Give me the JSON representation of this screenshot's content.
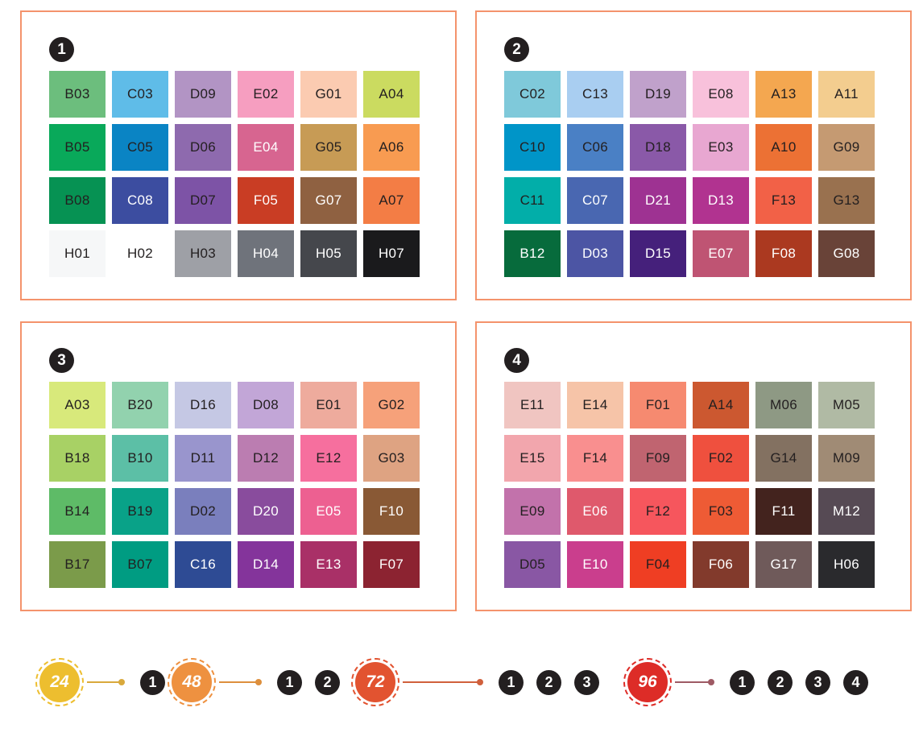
{
  "styles": {
    "panel_border_color": "#F4936C",
    "panel_badge_bg": "#231F20",
    "panel_badge_fg": "#FFFFFF",
    "background": "#FFFFFF"
  },
  "chart_data": {
    "type": "table",
    "title": "Marker color swatch chart grouped into four numbered panels with set-size legend",
    "grid_per_panel": {
      "columns": 6,
      "rows": 4
    },
    "panels": [
      {
        "badge": "1",
        "swatches": [
          {
            "code": "B03",
            "color": "#6CBE7D",
            "label_color": "#231F20"
          },
          {
            "code": "C03",
            "color": "#5FBCE8",
            "label_color": "#231F20"
          },
          {
            "code": "D09",
            "color": "#B294C4",
            "label_color": "#231F20"
          },
          {
            "code": "E02",
            "color": "#F69EC0",
            "label_color": "#231F20"
          },
          {
            "code": "G01",
            "color": "#FBCBB1",
            "label_color": "#231F20"
          },
          {
            "code": "A04",
            "color": "#CBDB60",
            "label_color": "#231F20"
          },
          {
            "code": "B05",
            "color": "#09A95A",
            "label_color": "#231F20"
          },
          {
            "code": "C05",
            "color": "#0A84C4",
            "label_color": "#231F20"
          },
          {
            "code": "D06",
            "color": "#8E6AAE",
            "label_color": "#231F20"
          },
          {
            "code": "E04",
            "color": "#D76590",
            "label_color": "#FFFFFF"
          },
          {
            "code": "G05",
            "color": "#C79B55",
            "label_color": "#231F20"
          },
          {
            "code": "A06",
            "color": "#F89B51",
            "label_color": "#231F20"
          },
          {
            "code": "B08",
            "color": "#069253",
            "label_color": "#231F20"
          },
          {
            "code": "C08",
            "color": "#3C4DA0",
            "label_color": "#FFFFFF"
          },
          {
            "code": "D07",
            "color": "#7D53A6",
            "label_color": "#231F20"
          },
          {
            "code": "F05",
            "color": "#C93D24",
            "label_color": "#FFFFFF"
          },
          {
            "code": "G07",
            "color": "#8F6141",
            "label_color": "#FFFFFF"
          },
          {
            "code": "A07",
            "color": "#F37D45",
            "label_color": "#231F20"
          },
          {
            "code": "H01",
            "color": "#F6F7F8",
            "label_color": "#231F20"
          },
          {
            "code": "H02",
            "color": "#FFFFFF",
            "label_color": "#231F20"
          },
          {
            "code": "H03",
            "color": "#9EA0A6",
            "label_color": "#231F20"
          },
          {
            "code": "H04",
            "color": "#6F737B",
            "label_color": "#FFFFFF"
          },
          {
            "code": "H05",
            "color": "#45474C",
            "label_color": "#FFFFFF"
          },
          {
            "code": "H07",
            "color": "#1A1A1C",
            "label_color": "#FFFFFF"
          }
        ]
      },
      {
        "badge": "2",
        "swatches": [
          {
            "code": "C02",
            "color": "#7FC9DA",
            "label_color": "#231F20"
          },
          {
            "code": "C13",
            "color": "#A9CEF1",
            "label_color": "#231F20"
          },
          {
            "code": "D19",
            "color": "#C0A1CB",
            "label_color": "#231F20"
          },
          {
            "code": "E08",
            "color": "#F8C1DB",
            "label_color": "#231F20"
          },
          {
            "code": "A13",
            "color": "#F4A750",
            "label_color": "#231F20"
          },
          {
            "code": "A11",
            "color": "#F3CD8F",
            "label_color": "#231F20"
          },
          {
            "code": "C10",
            "color": "#0095C8",
            "label_color": "#231F20"
          },
          {
            "code": "C06",
            "color": "#4A80C5",
            "label_color": "#231F20"
          },
          {
            "code": "D18",
            "color": "#8A59A8",
            "label_color": "#231F20"
          },
          {
            "code": "E03",
            "color": "#E8A7D1",
            "label_color": "#231F20"
          },
          {
            "code": "A10",
            "color": "#EC7134",
            "label_color": "#231F20"
          },
          {
            "code": "G09",
            "color": "#C59A72",
            "label_color": "#231F20"
          },
          {
            "code": "C11",
            "color": "#02AEA9",
            "label_color": "#231F20"
          },
          {
            "code": "C07",
            "color": "#4967B1",
            "label_color": "#FFFFFF"
          },
          {
            "code": "D21",
            "color": "#9E3292",
            "label_color": "#FFFFFF"
          },
          {
            "code": "D13",
            "color": "#B13390",
            "label_color": "#FFFFFF"
          },
          {
            "code": "F13",
            "color": "#F26147",
            "label_color": "#231F20"
          },
          {
            "code": "G13",
            "color": "#99714F",
            "label_color": "#231F20"
          },
          {
            "code": "B12",
            "color": "#076B3C",
            "label_color": "#FFFFFF"
          },
          {
            "code": "D03",
            "color": "#4C55A4",
            "label_color": "#FFFFFF"
          },
          {
            "code": "D15",
            "color": "#45207B",
            "label_color": "#FFFFFF"
          },
          {
            "code": "E07",
            "color": "#BF5473",
            "label_color": "#FFFFFF"
          },
          {
            "code": "F08",
            "color": "#AB3920",
            "label_color": "#FFFFFF"
          },
          {
            "code": "G08",
            "color": "#694338",
            "label_color": "#FFFFFF"
          }
        ]
      },
      {
        "badge": "3",
        "swatches": [
          {
            "code": "A03",
            "color": "#D8E97B",
            "label_color": "#231F20"
          },
          {
            "code": "B20",
            "color": "#92D2AE",
            "label_color": "#231F20"
          },
          {
            "code": "D16",
            "color": "#C5C8E4",
            "label_color": "#231F20"
          },
          {
            "code": "D08",
            "color": "#C2A6D7",
            "label_color": "#231F20"
          },
          {
            "code": "E01",
            "color": "#EEAB9D",
            "label_color": "#231F20"
          },
          {
            "code": "G02",
            "color": "#F6A17A",
            "label_color": "#231F20"
          },
          {
            "code": "B18",
            "color": "#A8D165",
            "label_color": "#231F20"
          },
          {
            "code": "B10",
            "color": "#5CBFA6",
            "label_color": "#231F20"
          },
          {
            "code": "D11",
            "color": "#9995CD",
            "label_color": "#231F20"
          },
          {
            "code": "D12",
            "color": "#BB7DB1",
            "label_color": "#231F20"
          },
          {
            "code": "E12",
            "color": "#F66F9E",
            "label_color": "#231F20"
          },
          {
            "code": "G03",
            "color": "#DEA382",
            "label_color": "#231F20"
          },
          {
            "code": "B14",
            "color": "#5EBB67",
            "label_color": "#231F20"
          },
          {
            "code": "B19",
            "color": "#09A288",
            "label_color": "#231F20"
          },
          {
            "code": "D02",
            "color": "#7A7FBD",
            "label_color": "#231F20"
          },
          {
            "code": "D20",
            "color": "#894C9D",
            "label_color": "#FFFFFF"
          },
          {
            "code": "E05",
            "color": "#ED6091",
            "label_color": "#FFFFFF"
          },
          {
            "code": "F10",
            "color": "#895935",
            "label_color": "#FFFFFF"
          },
          {
            "code": "B17",
            "color": "#7B9B4A",
            "label_color": "#231F20"
          },
          {
            "code": "B07",
            "color": "#009C82",
            "label_color": "#231F20"
          },
          {
            "code": "C16",
            "color": "#2E4B94",
            "label_color": "#FFFFFF"
          },
          {
            "code": "D14",
            "color": "#84349B",
            "label_color": "#FFFFFF"
          },
          {
            "code": "E13",
            "color": "#A93067",
            "label_color": "#FFFFFF"
          },
          {
            "code": "F07",
            "color": "#8C2331",
            "label_color": "#FFFFFF"
          }
        ]
      },
      {
        "badge": "4",
        "swatches": [
          {
            "code": "E11",
            "color": "#F0C5C1",
            "label_color": "#231F20"
          },
          {
            "code": "E14",
            "color": "#F6C4A8",
            "label_color": "#231F20"
          },
          {
            "code": "F01",
            "color": "#F68A70",
            "label_color": "#231F20"
          },
          {
            "code": "A14",
            "color": "#CC5830",
            "label_color": "#231F20"
          },
          {
            "code": "M06",
            "color": "#8E9984",
            "label_color": "#231F20"
          },
          {
            "code": "M05",
            "color": "#B0BAA4",
            "label_color": "#231F20"
          },
          {
            "code": "E15",
            "color": "#F2A6AD",
            "label_color": "#231F20"
          },
          {
            "code": "F14",
            "color": "#F98F8F",
            "label_color": "#231F20"
          },
          {
            "code": "F09",
            "color": "#C06470",
            "label_color": "#231F20"
          },
          {
            "code": "F02",
            "color": "#EF503E",
            "label_color": "#231F20"
          },
          {
            "code": "G14",
            "color": "#837161",
            "label_color": "#231F20"
          },
          {
            "code": "M09",
            "color": "#A08B75",
            "label_color": "#231F20"
          },
          {
            "code": "E09",
            "color": "#C272AB",
            "label_color": "#231F20"
          },
          {
            "code": "E06",
            "color": "#DF596C",
            "label_color": "#FFFFFF"
          },
          {
            "code": "F12",
            "color": "#F6565D",
            "label_color": "#231F20"
          },
          {
            "code": "F03",
            "color": "#EE5B35",
            "label_color": "#231F20"
          },
          {
            "code": "F11",
            "color": "#43231E",
            "label_color": "#FFFFFF"
          },
          {
            "code": "M12",
            "color": "#564A54",
            "label_color": "#FFFFFF"
          },
          {
            "code": "D05",
            "color": "#8957A4",
            "label_color": "#231F20"
          },
          {
            "code": "E10",
            "color": "#CA3E8D",
            "label_color": "#FFFFFF"
          },
          {
            "code": "F04",
            "color": "#EF3E23",
            "label_color": "#231F20"
          },
          {
            "code": "F06",
            "color": "#823A2C",
            "label_color": "#FFFFFF"
          },
          {
            "code": "G17",
            "color": "#6F5A5A",
            "label_color": "#FFFFFF"
          },
          {
            "code": "H06",
            "color": "#2A2A2D",
            "label_color": "#FFFFFF"
          }
        ]
      }
    ],
    "legend": [
      {
        "set_size": "24",
        "badge_color": "#EDBE2F",
        "connector_color": "#D9A93C",
        "includes_panels": [
          "1"
        ]
      },
      {
        "set_size": "48",
        "badge_color": "#EE9140",
        "connector_color": "#DD8F3D",
        "includes_panels": [
          "1",
          "2"
        ]
      },
      {
        "set_size": "72",
        "badge_color": "#E25330",
        "connector_color": "#D0603C",
        "includes_panels": [
          "1",
          "2",
          "3"
        ]
      },
      {
        "set_size": "96",
        "badge_color": "#DD2C27",
        "connector_color": "#9E5A64",
        "includes_panels": [
          "1",
          "2",
          "3",
          "4"
        ]
      }
    ]
  }
}
